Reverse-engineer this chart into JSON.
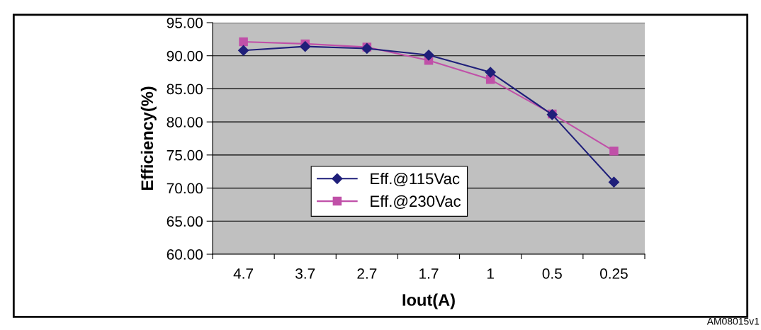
{
  "chart_data": {
    "type": "line",
    "xlabel": "Iout(A)",
    "ylabel": "Efficiency(%)",
    "categories": [
      "4.7",
      "3.7",
      "2.7",
      "1.7",
      "1",
      "0.5",
      "0.25"
    ],
    "series": [
      {
        "name": "Eff.@115Vac",
        "color": "#1f1f7a",
        "marker": "diamond",
        "values": [
          90.8,
          91.4,
          91.1,
          90.1,
          87.5,
          81.1,
          70.9
        ]
      },
      {
        "name": "Eff.@230Vac",
        "color": "#c050a8",
        "marker": "square",
        "values": [
          92.1,
          91.8,
          91.3,
          89.3,
          86.4,
          81.2,
          75.6
        ]
      }
    ],
    "ylim": [
      60,
      95
    ],
    "yticks": [
      {
        "value": 60,
        "label": "60.00"
      },
      {
        "value": 65,
        "label": "65.00"
      },
      {
        "value": 70,
        "label": "70.00"
      },
      {
        "value": 75,
        "label": "75.00"
      },
      {
        "value": 80,
        "label": "80.00"
      },
      {
        "value": 85,
        "label": "85.00"
      },
      {
        "value": 90,
        "label": "90.00"
      },
      {
        "value": 95,
        "label": "95.00"
      }
    ],
    "grid": "y",
    "legend": "bottom left",
    "line_style": "solid",
    "annotations": [
      "AM08015v1"
    ]
  }
}
